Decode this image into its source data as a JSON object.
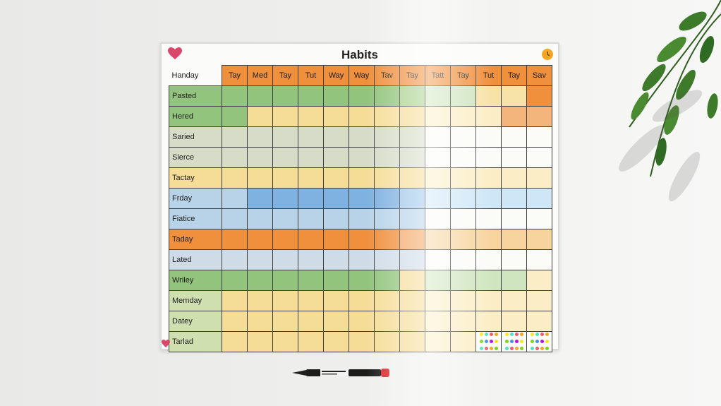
{
  "board": {
    "title": "Habits",
    "corner_label": "Handay",
    "days": [
      "Tay",
      "Med",
      "Tay",
      "Tut",
      "Way",
      "Way",
      "Tav",
      "Tay",
      "Tatt",
      "Tay",
      "Tut",
      "Tay",
      "Sav"
    ],
    "rows": [
      {
        "label": "Pasted",
        "label_color": "#93c47d",
        "cells": [
          "#93c47d",
          "#93c47d",
          "#93c47d",
          "#93c47d",
          "#93c47d",
          "#93c47d",
          "#93c47d",
          "#a8d08d",
          "#cfe5bf",
          "#cfe5bf",
          "#f7e2a8",
          "#f7e2a8",
          "#f08f3c"
        ]
      },
      {
        "label": "Hered",
        "label_color": "#93c47d",
        "cells": [
          "#93c47d",
          "#f5dd98",
          "#f5dd98",
          "#f5dd98",
          "#f5dd98",
          "#f5dd98",
          "#f5dd98",
          "#f5dd98",
          "#fbeec6",
          "#fbeec6",
          "#fbeec6",
          "#f3b57c",
          "#f3b57c"
        ]
      },
      {
        "label": "Saried",
        "label_color": "#d6dcc8",
        "cells": [
          "#d6dcc8",
          "#d6dcc8",
          "#d6dcc8",
          "#d6dcc8",
          "#d6dcc8",
          "#d6dcc8",
          "#d6dcc8",
          "#d6dcc8",
          "#fbfbf8",
          "#fbfbf8",
          "#fbfbf8",
          "#fbfbf8",
          "#fbfbf8"
        ]
      },
      {
        "label": "Sierce",
        "label_color": "#d6dcc8",
        "cells": [
          "#d6dcc8",
          "#d6dcc8",
          "#d6dcc8",
          "#d6dcc8",
          "#d6dcc8",
          "#d6dcc8",
          "#d6dcc8",
          "#d6dcc8",
          "#fbfbf8",
          "#fbfbf8",
          "#fbfbf8",
          "#fbfbf8",
          "#fbfbf8"
        ]
      },
      {
        "label": "Tactay",
        "label_color": "#f5dd98",
        "cells": [
          "#f5dd98",
          "#f5dd98",
          "#f5dd98",
          "#f5dd98",
          "#f5dd98",
          "#f5dd98",
          "#f5dd98",
          "#f5dd98",
          "#fbeec6",
          "#fbeec6",
          "#fbeec6",
          "#fbeec6",
          "#fbeec6"
        ]
      },
      {
        "label": "Frday",
        "label_color": "#b8d3e8",
        "cells": [
          "#b8d3e8",
          "#7fb2e0",
          "#7fb2e0",
          "#7fb2e0",
          "#7fb2e0",
          "#7fb2e0",
          "#7fb2e0",
          "#9fc7ea",
          "#cfe6f6",
          "#cfe6f6",
          "#cfe6f6",
          "#cfe6f6",
          "#cfe6f6"
        ]
      },
      {
        "label": "Fiatice",
        "label_color": "#b8d3e8",
        "cells": [
          "#b8d3e8",
          "#b8d3e8",
          "#b8d3e8",
          "#b8d3e8",
          "#b8d3e8",
          "#b8d3e8",
          "#b8d3e8",
          "#b8d3e8",
          "#fbfbf8",
          "#fbfbf8",
          "#fbfbf8",
          "#fbfbf8",
          "#fbfbf8"
        ]
      },
      {
        "label": "Taday",
        "label_color": "#f08f3c",
        "cells": [
          "#f08f3c",
          "#f08f3c",
          "#f08f3c",
          "#f08f3c",
          "#f08f3c",
          "#f08f3c",
          "#f08f3c",
          "#f3a560",
          "#f7d49e",
          "#f7d49e",
          "#f7d49e",
          "#f7d49e",
          "#f7d49e"
        ]
      },
      {
        "label": "Lated",
        "label_color": "#cfdce8",
        "cells": [
          "#cfdce8",
          "#cfdce8",
          "#cfdce8",
          "#cfdce8",
          "#cfdce8",
          "#cfdce8",
          "#cfdce8",
          "#cfdce8",
          "#fbfbf8",
          "#fbfbf8",
          "#fbfbf8",
          "#fbfbf8",
          "#fbfbf8"
        ]
      },
      {
        "label": "Wriley",
        "label_color": "#93c47d",
        "cells": [
          "#93c47d",
          "#93c47d",
          "#93c47d",
          "#93c47d",
          "#93c47d",
          "#93c47d",
          "#93c47d",
          "#f5dd98",
          "#cfe5bf",
          "#cfe5bf",
          "#cfe5bf",
          "#cfe5bf",
          "#fbeec6"
        ]
      },
      {
        "label": "Memday",
        "label_color": "#cfdfb0",
        "cells": [
          "#f5dd98",
          "#f5dd98",
          "#f5dd98",
          "#f5dd98",
          "#f5dd98",
          "#f5dd98",
          "#f5dd98",
          "#f5dd98",
          "#fbeec6",
          "#fbeec6",
          "#fbeec6",
          "#fbeec6",
          "#fbeec6"
        ]
      },
      {
        "label": "Datey",
        "label_color": "#cfdfb0",
        "cells": [
          "#f5dd98",
          "#f5dd98",
          "#f5dd98",
          "#f5dd98",
          "#f5dd98",
          "#f5dd98",
          "#f5dd98",
          "#f5dd98",
          "#fbeec6",
          "#fbeec6",
          "#fbeec6",
          "#fbeec6",
          "#fbeec6"
        ]
      },
      {
        "label": "Tarlad",
        "label_color": "#cfdfb0",
        "cells": [
          "#f5dd98",
          "#f5dd98",
          "#f5dd98",
          "#f5dd98",
          "#f5dd98",
          "#f5dd98",
          "#f5dd98",
          "#f5dd98",
          "#fbeec6",
          "#fbeec6",
          "dots",
          "dots",
          "dots"
        ]
      }
    ],
    "dot_colors": [
      "#e85d75",
      "#f5a623",
      "#7ed321",
      "#4a90e2",
      "#bd10e0",
      "#f8e71c",
      "#50e3c2"
    ]
  },
  "icons": {
    "heart": "heart-icon",
    "clock": "clock-icon",
    "marker": "marker-pen-icon",
    "plant": "plant-icon"
  }
}
